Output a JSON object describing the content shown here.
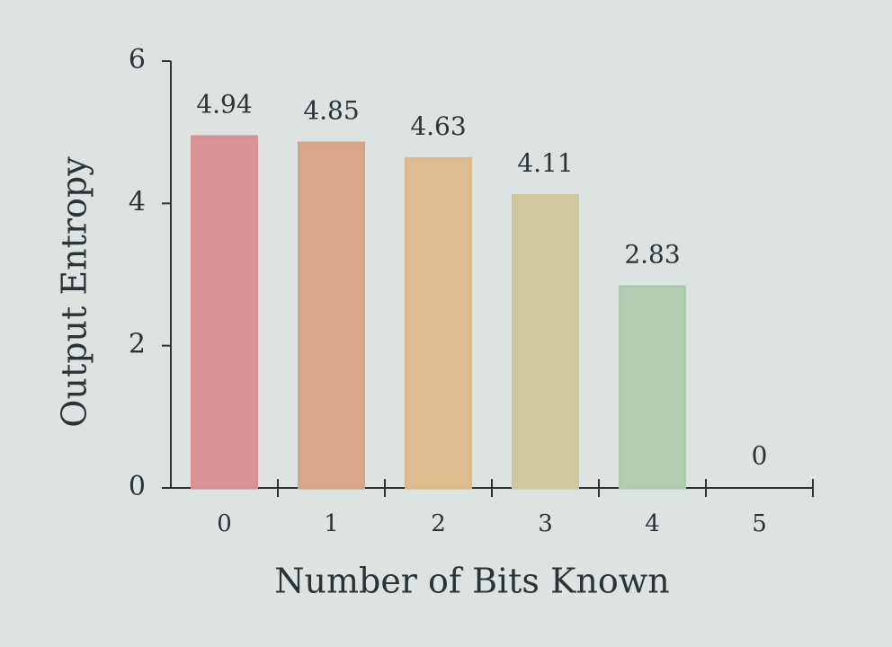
{
  "chart_data": {
    "type": "bar",
    "x_label": "Number of Bits Known",
    "y_label": "Output Entropy",
    "categories": [
      "0",
      "1",
      "2",
      "3",
      "4",
      "5"
    ],
    "values": [
      4.94,
      4.85,
      4.63,
      4.11,
      2.83,
      0
    ],
    "colors": [
      "#d68f95",
      "#d6a386",
      "#dcb98a",
      "#cdc79c",
      "#b0c8b0",
      "#b7c9c9"
    ],
    "ylim": [
      0,
      6
    ],
    "yticks": [
      0,
      2,
      4,
      6
    ]
  }
}
